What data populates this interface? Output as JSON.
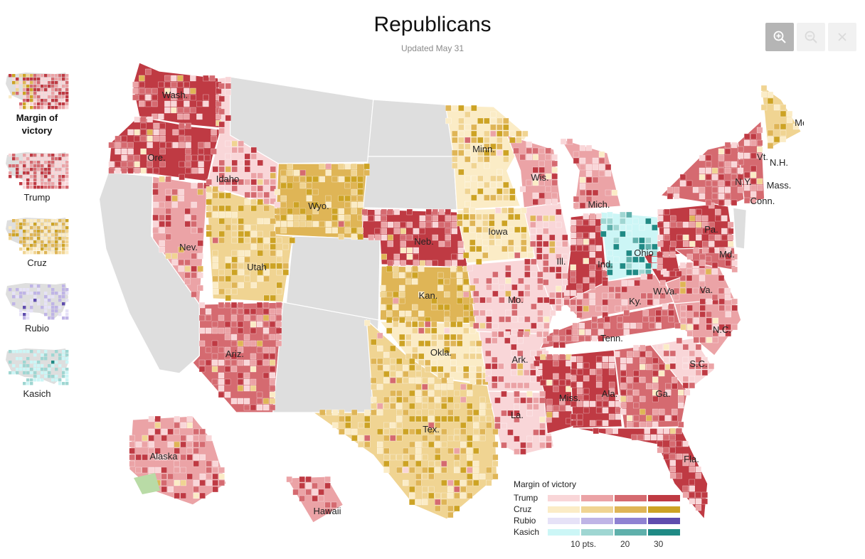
{
  "header": {
    "title": "Republicans",
    "updated": "Updated May 31"
  },
  "zoom_controls": [
    {
      "name": "zoom-in",
      "icon": "zoom-in-icon",
      "state": "active"
    },
    {
      "name": "zoom-out",
      "icon": "zoom-out-icon",
      "state": "inactive"
    },
    {
      "name": "close",
      "icon": "close-icon",
      "state": "inactive"
    }
  ],
  "views": [
    {
      "label": "Margin of victory",
      "selected": true,
      "palette": "mixed"
    },
    {
      "label": "Trump",
      "selected": false,
      "palette": "trump"
    },
    {
      "label": "Cruz",
      "selected": false,
      "palette": "cruz"
    },
    {
      "label": "Rubio",
      "selected": false,
      "palette": "rubio"
    },
    {
      "label": "Kasich",
      "selected": false,
      "palette": "kasich"
    }
  ],
  "state_labels": [
    "Wash.",
    "Ore.",
    "Idaho",
    "Nev.",
    "Utah",
    "Wyo.",
    "Ariz.",
    "Alaska",
    "Hawaii",
    "Minn.",
    "Neb.",
    "Kan.",
    "Okla.",
    "Tex.",
    "Iowa",
    "Mo.",
    "Ark.",
    "La.",
    "Wis.",
    "Ill.",
    "Miss.",
    "Mich.",
    "Ind.",
    "Tenn.",
    "Ala.",
    "Ky.",
    "Ohio",
    "Ga.",
    "Fla.",
    "W.Va.",
    "Va.",
    "N.C.",
    "S.C.",
    "Pa.",
    "Md.",
    "N.Y.",
    "Conn.",
    "Mass.",
    "Vt.",
    "N.H.",
    "Me."
  ],
  "legend": {
    "title": "Margin of victory",
    "candidates": [
      {
        "name": "Trump",
        "colors": [
          "#f9d6d8",
          "#eba3a6",
          "#d56a70",
          "#bf3a43"
        ]
      },
      {
        "name": "Cruz",
        "colors": [
          "#fbecc6",
          "#f0d492",
          "#dfb556",
          "#cda324"
        ]
      },
      {
        "name": "Rubio",
        "colors": [
          "#e6e2f7",
          "#bfb4e6",
          "#8f82d2",
          "#5f4dae"
        ]
      },
      {
        "name": "Kasich",
        "colors": [
          "#ccf6f6",
          "#9fd6d2",
          "#5fb0ab",
          "#208a85"
        ]
      }
    ],
    "ticks": [
      "10 pts.",
      "20",
      "30"
    ]
  },
  "colors": {
    "no_contest": "#dedede",
    "border": "#ffffff",
    "alaska_green": "#b9dba6"
  }
}
